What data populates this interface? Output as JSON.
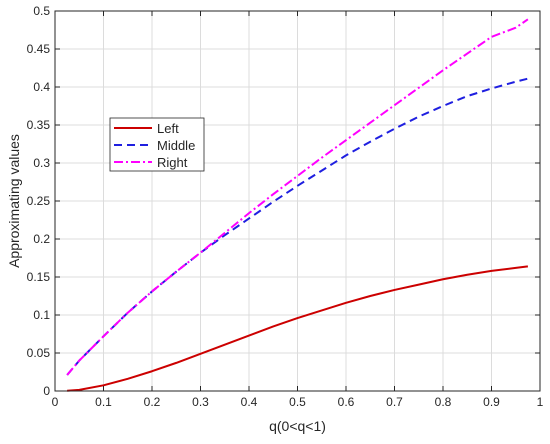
{
  "chart_data": {
    "type": "line",
    "title": "",
    "xlabel": "q(0<q<1)",
    "ylabel": "Approximating values",
    "xlim": [
      0,
      1
    ],
    "ylim": [
      0,
      0.5
    ],
    "grid": true,
    "legend_position": "upper-left",
    "x_ticks": [
      0,
      0.1,
      0.2,
      0.3,
      0.4,
      0.5,
      0.6,
      0.7,
      0.8,
      0.9,
      1
    ],
    "x_tick_labels": [
      "0",
      "0.1",
      "0.2",
      "0.3",
      "0.4",
      "0.5",
      "0.6",
      "0.7",
      "0.8",
      "0.9",
      "1"
    ],
    "y_ticks": [
      0,
      0.05,
      0.1,
      0.15,
      0.2,
      0.25,
      0.3,
      0.35,
      0.4,
      0.45,
      0.5
    ],
    "y_tick_labels": [
      "0",
      "0.05",
      "0.1",
      "0.15",
      "0.2",
      "0.25",
      "0.3",
      "0.35",
      "0.4",
      "0.45",
      "0.5"
    ],
    "series": [
      {
        "name": "Left",
        "color": "#cc0000",
        "style": "solid",
        "x": [
          0.025,
          0.05,
          0.1,
          0.15,
          0.2,
          0.25,
          0.3,
          0.35,
          0.4,
          0.45,
          0.5,
          0.55,
          0.6,
          0.65,
          0.7,
          0.75,
          0.8,
          0.85,
          0.9,
          0.95,
          0.975
        ],
        "y": [
          0.0004,
          0.0015,
          0.0075,
          0.016,
          0.026,
          0.037,
          0.049,
          0.061,
          0.073,
          0.085,
          0.096,
          0.106,
          0.116,
          0.125,
          0.133,
          0.14,
          0.147,
          0.153,
          0.158,
          0.162,
          0.164
        ]
      },
      {
        "name": "Middle",
        "color": "#1f1fe0",
        "style": "dashed",
        "x": [
          0.025,
          0.05,
          0.1,
          0.15,
          0.2,
          0.25,
          0.3,
          0.35,
          0.4,
          0.45,
          0.5,
          0.55,
          0.6,
          0.65,
          0.7,
          0.75,
          0.8,
          0.85,
          0.9,
          0.95,
          0.975
        ],
        "y": [
          0.021,
          0.04,
          0.072,
          0.103,
          0.131,
          0.157,
          0.182,
          0.205,
          0.227,
          0.249,
          0.27,
          0.29,
          0.31,
          0.328,
          0.345,
          0.361,
          0.375,
          0.388,
          0.398,
          0.407,
          0.411
        ]
      },
      {
        "name": "Right",
        "color": "#ff00ff",
        "style": "dashdot",
        "x": [
          0.025,
          0.05,
          0.1,
          0.15,
          0.2,
          0.25,
          0.3,
          0.35,
          0.4,
          0.45,
          0.5,
          0.55,
          0.6,
          0.65,
          0.7,
          0.75,
          0.8,
          0.85,
          0.9,
          0.95,
          0.975
        ],
        "y": [
          0.021,
          0.04,
          0.072,
          0.103,
          0.131,
          0.157,
          0.182,
          0.208,
          0.234,
          0.259,
          0.283,
          0.307,
          0.33,
          0.353,
          0.376,
          0.399,
          0.422,
          0.444,
          0.466,
          0.478,
          0.489
        ]
      }
    ]
  }
}
